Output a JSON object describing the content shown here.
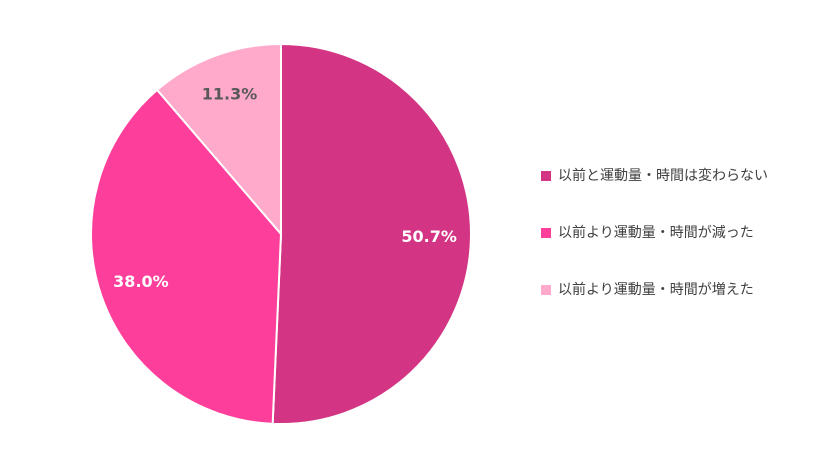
{
  "chart_data": {
    "type": "pie",
    "categories": [
      "以前と運動量・時間は変わらない",
      "以前より運動量・時間が減った",
      "以前より運動量・時間が増えた"
    ],
    "values": [
      50.7,
      38.0,
      11.3
    ],
    "value_labels": [
      "50.7%",
      "38.0%",
      "11.3%"
    ],
    "colors": [
      "#d33584",
      "#fd3f9b",
      "#ffaacb"
    ],
    "legend": "right"
  }
}
